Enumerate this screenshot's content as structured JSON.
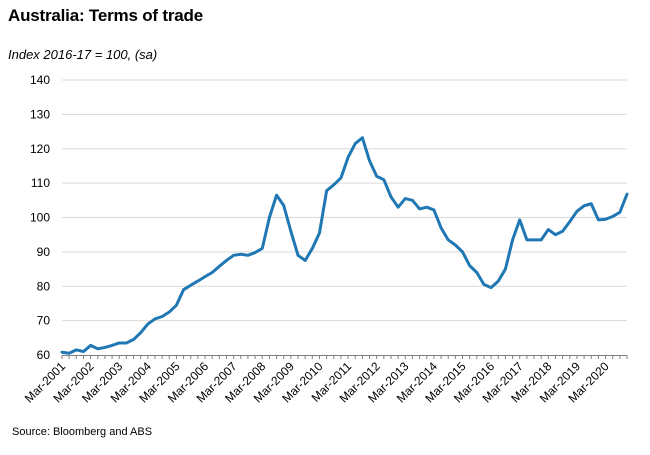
{
  "title": "Australia: Terms of trade",
  "subtitle": "Index 2016-17 = 100, (sa)",
  "source": "Source: Bloomberg and ABS",
  "chart_data": {
    "type": "line",
    "ylim": [
      60,
      140
    ],
    "y_ticks": [
      60,
      70,
      80,
      90,
      100,
      110,
      120,
      130,
      140
    ],
    "grid": "horizontal",
    "line_color": "#1f77b4",
    "x_tick_labels": [
      "Mar-2001",
      "Mar-2002",
      "Mar-2003",
      "Mar-2004",
      "Mar-2005",
      "Mar-2006",
      "Mar-2007",
      "Mar-2008",
      "Mar-2009",
      "Mar-2010",
      "Mar-2011",
      "Mar-2012",
      "Mar-2013",
      "Mar-2014",
      "Mar-2015",
      "Mar-2016",
      "Mar-2017",
      "Mar-2018",
      "Mar-2019",
      "Mar-2020"
    ],
    "series": [
      {
        "values": [
          60.8,
          60.5,
          61.5,
          61.0,
          62.8,
          61.8,
          62.2,
          62.8,
          63.5,
          63.5,
          64.5,
          66.5,
          69.0,
          70.5,
          71.2,
          72.5,
          74.5,
          79.0,
          80.3,
          81.5,
          82.8,
          84.0,
          85.8,
          87.5,
          89.0,
          89.3,
          89.0,
          89.8,
          91.0,
          100.0,
          106.5,
          103.5,
          96.0,
          89.0,
          87.5,
          91.0,
          95.5,
          107.8,
          109.5,
          111.5,
          117.5,
          121.5,
          123.2,
          116.5,
          112.0,
          111.0,
          106.0,
          103.0,
          105.5,
          105.0,
          102.5,
          103.0,
          102.2,
          97.0,
          93.5,
          92.0,
          90.0,
          86.0,
          84.0,
          80.5,
          79.6,
          81.5,
          85.0,
          93.5,
          99.3,
          93.5,
          93.5,
          93.5,
          96.5,
          95.0,
          96.0,
          98.8,
          101.8,
          103.4,
          104.0,
          99.3,
          99.5,
          100.3,
          101.5,
          106.8
        ]
      }
    ]
  }
}
